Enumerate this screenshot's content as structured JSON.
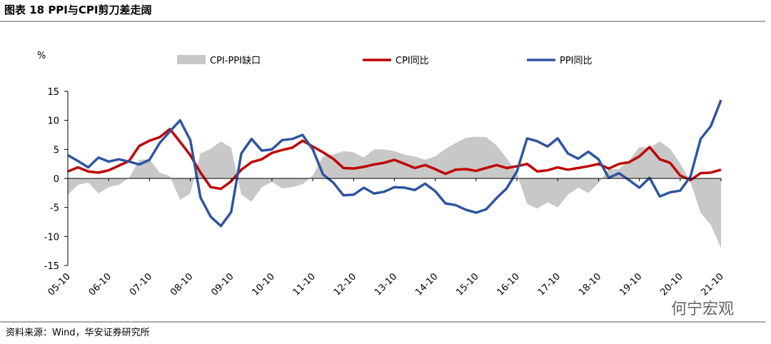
{
  "header": {
    "title": "图表 18 PPI与CPI剪刀差走阔"
  },
  "chart_data": {
    "type": "line",
    "y_unit": "%",
    "categories": [
      "05-10",
      null,
      null,
      null,
      "06-10",
      null,
      null,
      null,
      "07-10",
      null,
      null,
      null,
      "08-10",
      null,
      null,
      null,
      "09-10",
      null,
      null,
      null,
      "10-10",
      null,
      null,
      null,
      "11-10",
      null,
      null,
      null,
      "12-10",
      null,
      null,
      null,
      "13-10",
      null,
      null,
      null,
      "14-10",
      null,
      null,
      null,
      "15-10",
      null,
      null,
      null,
      "16-10",
      null,
      null,
      null,
      "17-10",
      null,
      null,
      null,
      "18-10",
      null,
      null,
      null,
      "19-10",
      null,
      null,
      null,
      "20-10",
      null,
      null,
      null,
      "21-10"
    ],
    "series": [
      {
        "name": "CPI-PPI缺口",
        "kind": "area",
        "color": "#c8c8c8",
        "values": [
          -2.8,
          -1.1,
          -0.7,
          -2.6,
          -1.5,
          -1.1,
          0.1,
          3.2,
          3.3,
          1.0,
          0.4,
          -3.7,
          -2.6,
          4.3,
          5.1,
          6.4,
          5.3,
          -2.8,
          -4.0,
          -1.5,
          -0.6,
          -1.7,
          -1.5,
          -1.0,
          0.5,
          3.8,
          4.1,
          4.7,
          4.5,
          3.6,
          5.0,
          5.0,
          4.7,
          4.1,
          3.8,
          3.2,
          3.8,
          5.1,
          6.1,
          7.0,
          7.2,
          7.1,
          5.7,
          3.5,
          0.9,
          -4.4,
          -5.2,
          -4.1,
          -5.0,
          -2.8,
          -1.6,
          -2.5,
          -0.8,
          1.6,
          1.6,
          3.1,
          5.4,
          5.3,
          6.4,
          5.1,
          2.6,
          -0.6,
          -5.9,
          -8.0,
          -12.0
        ]
      },
      {
        "name": "CPI同比",
        "kind": "line",
        "color": "#c00000",
        "values": [
          1.2,
          1.9,
          1.2,
          1.0,
          1.4,
          2.2,
          3.0,
          5.6,
          6.5,
          7.1,
          8.5,
          6.3,
          4.0,
          1.0,
          -1.5,
          -1.8,
          -0.5,
          1.5,
          2.8,
          3.3,
          4.4,
          4.9,
          5.3,
          6.5,
          5.5,
          4.5,
          3.4,
          1.8,
          1.7,
          2.0,
          2.4,
          2.7,
          3.2,
          2.5,
          1.8,
          2.3,
          1.6,
          0.8,
          1.5,
          1.6,
          1.3,
          1.8,
          2.3,
          1.8,
          2.1,
          2.5,
          1.2,
          1.4,
          1.9,
          1.5,
          1.8,
          2.1,
          2.5,
          1.7,
          2.5,
          2.8,
          3.8,
          5.4,
          3.3,
          2.7,
          0.5,
          -0.3,
          0.9,
          1.0,
          1.5
        ]
      },
      {
        "name": "PPI同比",
        "kind": "line",
        "color": "#2e55a0",
        "values": [
          4.0,
          3.0,
          1.9,
          3.6,
          2.9,
          3.3,
          2.9,
          2.4,
          3.2,
          6.1,
          8.1,
          10.0,
          6.6,
          -3.3,
          -6.6,
          -8.2,
          -5.8,
          4.3,
          6.8,
          4.8,
          5.0,
          6.6,
          6.8,
          7.5,
          5.0,
          0.7,
          -0.7,
          -2.9,
          -2.8,
          -1.6,
          -2.6,
          -2.3,
          -1.5,
          -1.6,
          -2.0,
          -0.9,
          -2.2,
          -4.3,
          -4.6,
          -5.4,
          -5.9,
          -5.3,
          -3.4,
          -1.7,
          1.2,
          6.9,
          6.4,
          5.5,
          6.9,
          4.3,
          3.4,
          4.6,
          3.3,
          0.1,
          0.9,
          -0.3,
          -1.6,
          0.1,
          -3.1,
          -2.4,
          -2.1,
          0.3,
          6.8,
          9.0,
          13.5
        ]
      }
    ],
    "ylim": [
      -15,
      15
    ],
    "yticks": [
      -15,
      -10,
      -5,
      0,
      5,
      10,
      15
    ]
  },
  "footer": {
    "source": "资料来源：Wind，华安证券研究所",
    "watermark": "何宁宏观"
  }
}
